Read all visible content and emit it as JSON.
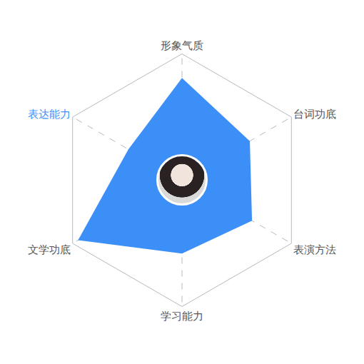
{
  "chart_data": {
    "type": "radar",
    "categories": [
      "形象气质",
      "台词功底",
      "表演方法",
      "学习能力",
      "文学功底",
      "表达能力"
    ],
    "values": [
      81,
      62,
      64,
      58,
      95,
      49
    ],
    "color": "#3d8ff8",
    "ylim": [
      0,
      100
    ],
    "tick_labels": "x",
    "grid": true
  }
}
